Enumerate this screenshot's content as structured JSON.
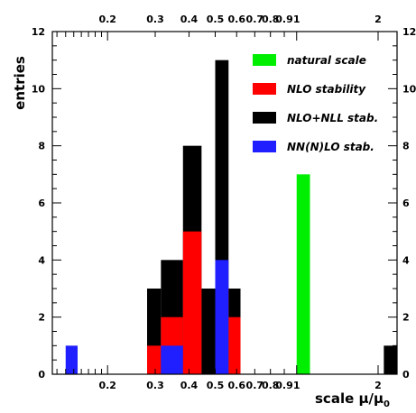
{
  "chart_data": {
    "type": "bar",
    "stacked": true,
    "xscale": "log",
    "xlim": [
      0.125,
      2.35
    ],
    "ylim": [
      0,
      12
    ],
    "xlabel": "scale μ/μ",
    "xlabel_subscript": "0",
    "ylabel": "entries",
    "x_ticks_labeled": [
      "0.2",
      "0.3",
      "0.4",
      "0.5",
      "0.6",
      "0.7",
      "0.8",
      "0.9",
      "1",
      "2"
    ],
    "y_ticks_labeled": [
      "0",
      "2",
      "4",
      "6",
      "8",
      "10",
      "12"
    ],
    "legend_position": "top-right",
    "series": [
      {
        "name": "NN(N)LO stab.",
        "color": "#1f1fff",
        "bins": [
          {
            "x0": 0.14,
            "x1": 0.155,
            "value": 1
          },
          {
            "x0": 0.315,
            "x1": 0.38,
            "value": 1
          },
          {
            "x0": 0.5,
            "x1": 0.56,
            "value": 4
          }
        ]
      },
      {
        "name": "NLO stability",
        "color": "#ff0000",
        "bins": [
          {
            "x0": 0.28,
            "x1": 0.315,
            "value": 1
          },
          {
            "x0": 0.315,
            "x1": 0.38,
            "value": 2
          },
          {
            "x0": 0.38,
            "x1": 0.445,
            "value": 5
          },
          {
            "x0": 0.5,
            "x1": 0.56,
            "value": 3
          },
          {
            "x0": 0.56,
            "x1": 0.62,
            "value": 2
          }
        ]
      },
      {
        "name": "natural scale",
        "color": "#00ee00",
        "bins": [
          {
            "x0": 0.5,
            "x1": 0.56,
            "value": 2
          },
          {
            "x0": 1.0,
            "x1": 1.12,
            "value": 7
          }
        ]
      },
      {
        "name": "NLO+NLL stab.",
        "color": "#000000",
        "bins": [
          {
            "x0": 0.28,
            "x1": 0.315,
            "value": 3
          },
          {
            "x0": 0.315,
            "x1": 0.38,
            "value": 4
          },
          {
            "x0": 0.38,
            "x1": 0.445,
            "value": 8
          },
          {
            "x0": 0.445,
            "x1": 0.5,
            "value": 3
          },
          {
            "x0": 0.5,
            "x1": 0.56,
            "value": 11
          },
          {
            "x0": 0.56,
            "x1": 0.62,
            "value": 3
          },
          {
            "x0": 2.1,
            "x1": 2.35,
            "value": 1
          }
        ]
      }
    ],
    "legend": [
      {
        "label": "natural scale",
        "color": "#00ee00"
      },
      {
        "label": "NLO stability",
        "color": "#ff0000"
      },
      {
        "label": "NLO+NLL stab.",
        "color": "#000000"
      },
      {
        "label": "NN(N)LO stab.",
        "color": "#1f1fff"
      }
    ]
  }
}
